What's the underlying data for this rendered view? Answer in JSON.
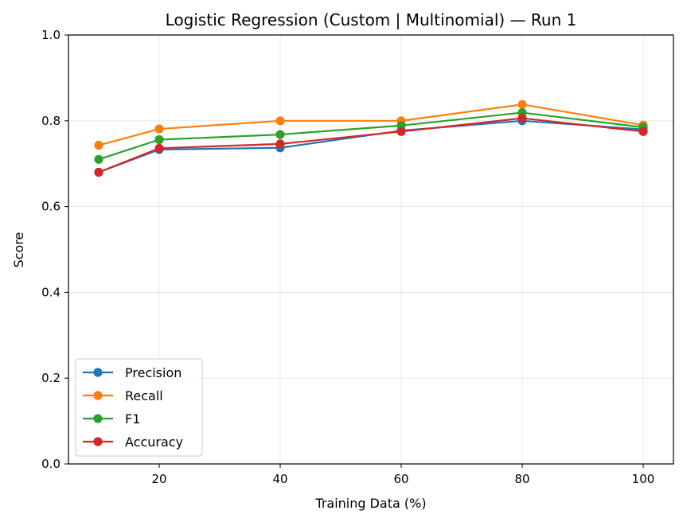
{
  "chart_data": {
    "type": "line",
    "title": "Logistic Regression (Custom | Multinomial) — Run 1",
    "xlabel": "Training Data (%)",
    "ylabel": "Score",
    "x": [
      10,
      20,
      40,
      60,
      80,
      100
    ],
    "xlim": [
      5,
      105
    ],
    "ylim": [
      0,
      1
    ],
    "xticks": [
      20,
      40,
      60,
      80,
      100
    ],
    "yticks": [
      0.0,
      0.2,
      0.4,
      0.6,
      0.8,
      1.0
    ],
    "ytick_labels": [
      "0.0",
      "0.2",
      "0.4",
      "0.6",
      "0.8",
      "1.0"
    ],
    "grid": true,
    "legend_position": "lower-left",
    "series": [
      {
        "name": "Precision",
        "color": "#1f77b4",
        "values": [
          0.68,
          0.733,
          0.737,
          0.777,
          0.8,
          0.78
        ]
      },
      {
        "name": "Recall",
        "color": "#ff7f0e",
        "values": [
          0.743,
          0.781,
          0.8,
          0.8,
          0.838,
          0.79
        ]
      },
      {
        "name": "F1",
        "color": "#2ca02c",
        "values": [
          0.71,
          0.756,
          0.768,
          0.789,
          0.819,
          0.785
        ]
      },
      {
        "name": "Accuracy",
        "color": "#d62728",
        "values": [
          0.68,
          0.736,
          0.746,
          0.775,
          0.806,
          0.775
        ]
      }
    ]
  }
}
